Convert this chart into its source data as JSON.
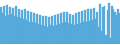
{
  "values": [
    85,
    72,
    88,
    65,
    90,
    68,
    86,
    70,
    84,
    66,
    88,
    62,
    82,
    60,
    78,
    58,
    80,
    55,
    76,
    52,
    74,
    50,
    72,
    48,
    70,
    46,
    68,
    44,
    66,
    42,
    64,
    40,
    62,
    45,
    65,
    42,
    68,
    44,
    70,
    46,
    72,
    48,
    75,
    50,
    73,
    48,
    70,
    46,
    68,
    44,
    72,
    46,
    74,
    48,
    76,
    50,
    78,
    52,
    80,
    54,
    82,
    56,
    84,
    58,
    75,
    40,
    92,
    30,
    85,
    88,
    20,
    78,
    95,
    15,
    88,
    82,
    75,
    68,
    80,
    72
  ],
  "bar_color": "#5aaee0",
  "edge_color": "#4a9ed0",
  "background_color": "#ffffff",
  "linewidth": 0.2
}
